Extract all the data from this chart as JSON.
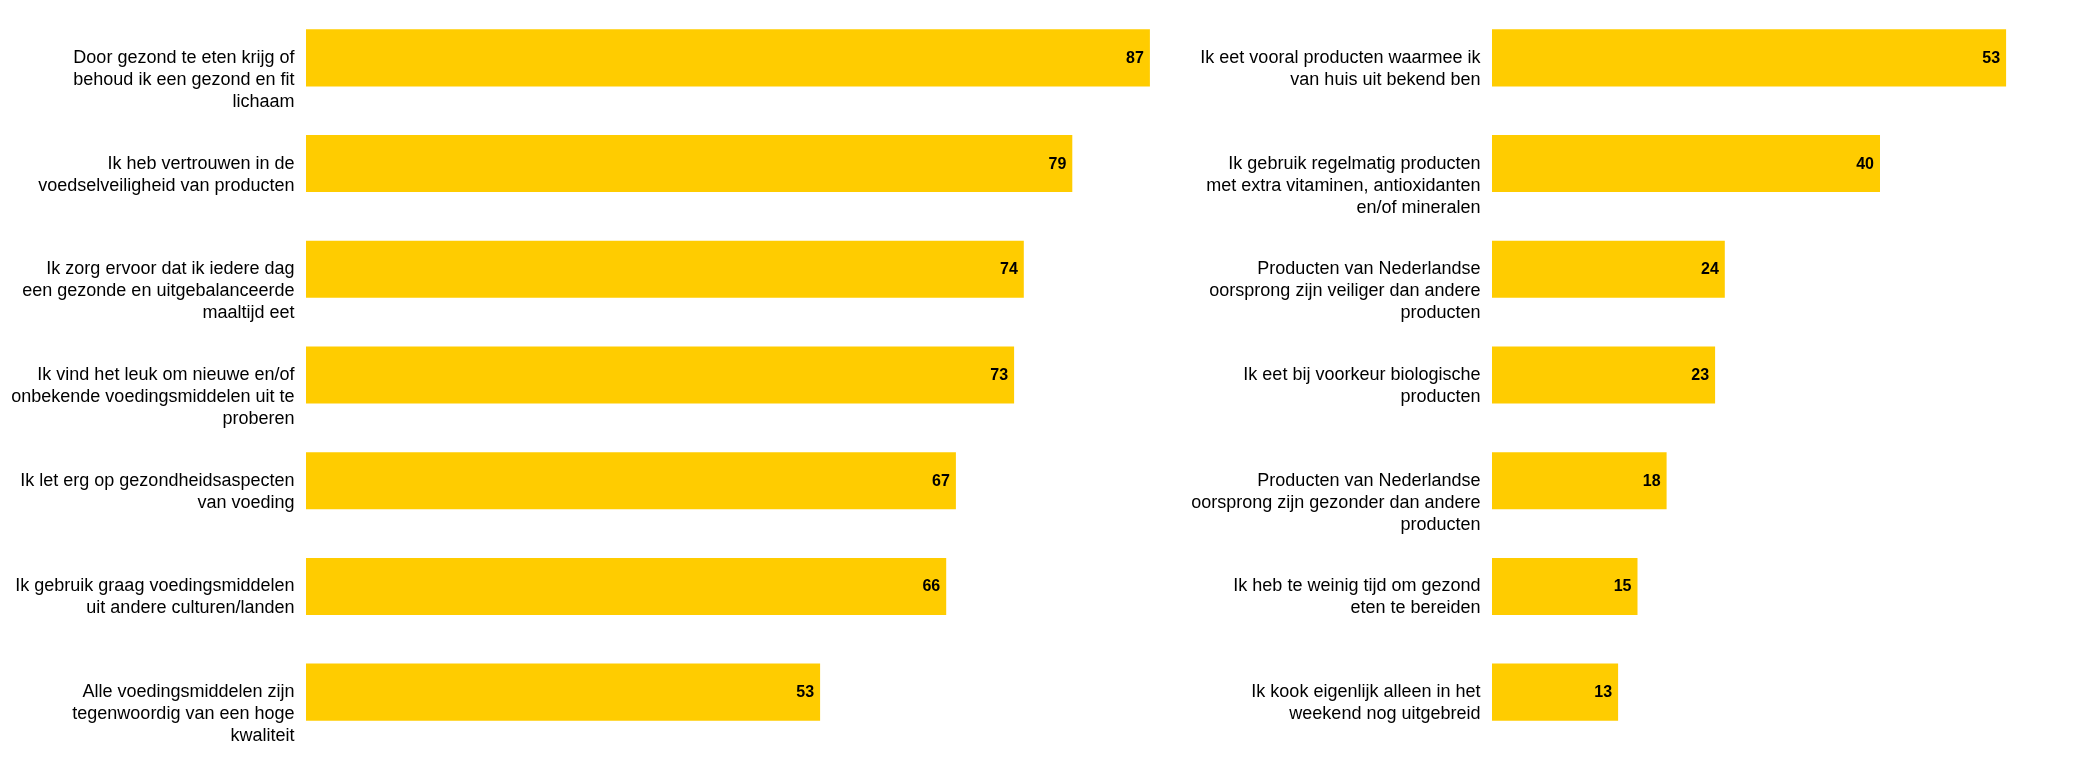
{
  "chart_data": [
    {
      "type": "bar",
      "orientation": "horizontal",
      "color": "#ffcc00",
      "data_labels": true,
      "categories": [
        "Door gezond te eten krijg of behoud ik een gezond en fit lichaam",
        "Ik heb vertrouwen in de voedselveiligheid van producten",
        "Ik zorg ervoor dat ik iedere dag een gezonde en uitgebalanceerde maaltijd eet",
        "Ik vind het leuk om nieuwe en/of onbekende voedingsmiddelen uit te proberen",
        "Ik let erg op gezondheidsaspecten van voeding",
        "Ik gebruik graag voedingsmiddelen uit andere culturen/landen",
        "Alle voedingsmiddelen zijn tegenwoordig van een hoge kwaliteit"
      ],
      "values": [
        87,
        79,
        74,
        73,
        67,
        66,
        53
      ]
    },
    {
      "type": "bar",
      "orientation": "horizontal",
      "color": "#ffcc00",
      "data_labels": true,
      "categories": [
        "Ik eet vooral producten waarmee ik van huis uit bekend ben",
        "Ik gebruik regelmatig producten met extra vitaminen, antioxidanten en/of mineralen",
        "Producten van Nederlandse oorsprong zijn veiliger dan andere producten",
        "Ik eet bij voorkeur biologische producten",
        "Producten van Nederlandse oorsprong zijn gezonder dan andere producten",
        "Ik heb te weinig tijd om gezond eten te bereiden",
        "Ik kook eigenlijk alleen in het weekend nog uitgebreid"
      ],
      "values": [
        53,
        40,
        24,
        23,
        18,
        15,
        13
      ]
    }
  ]
}
